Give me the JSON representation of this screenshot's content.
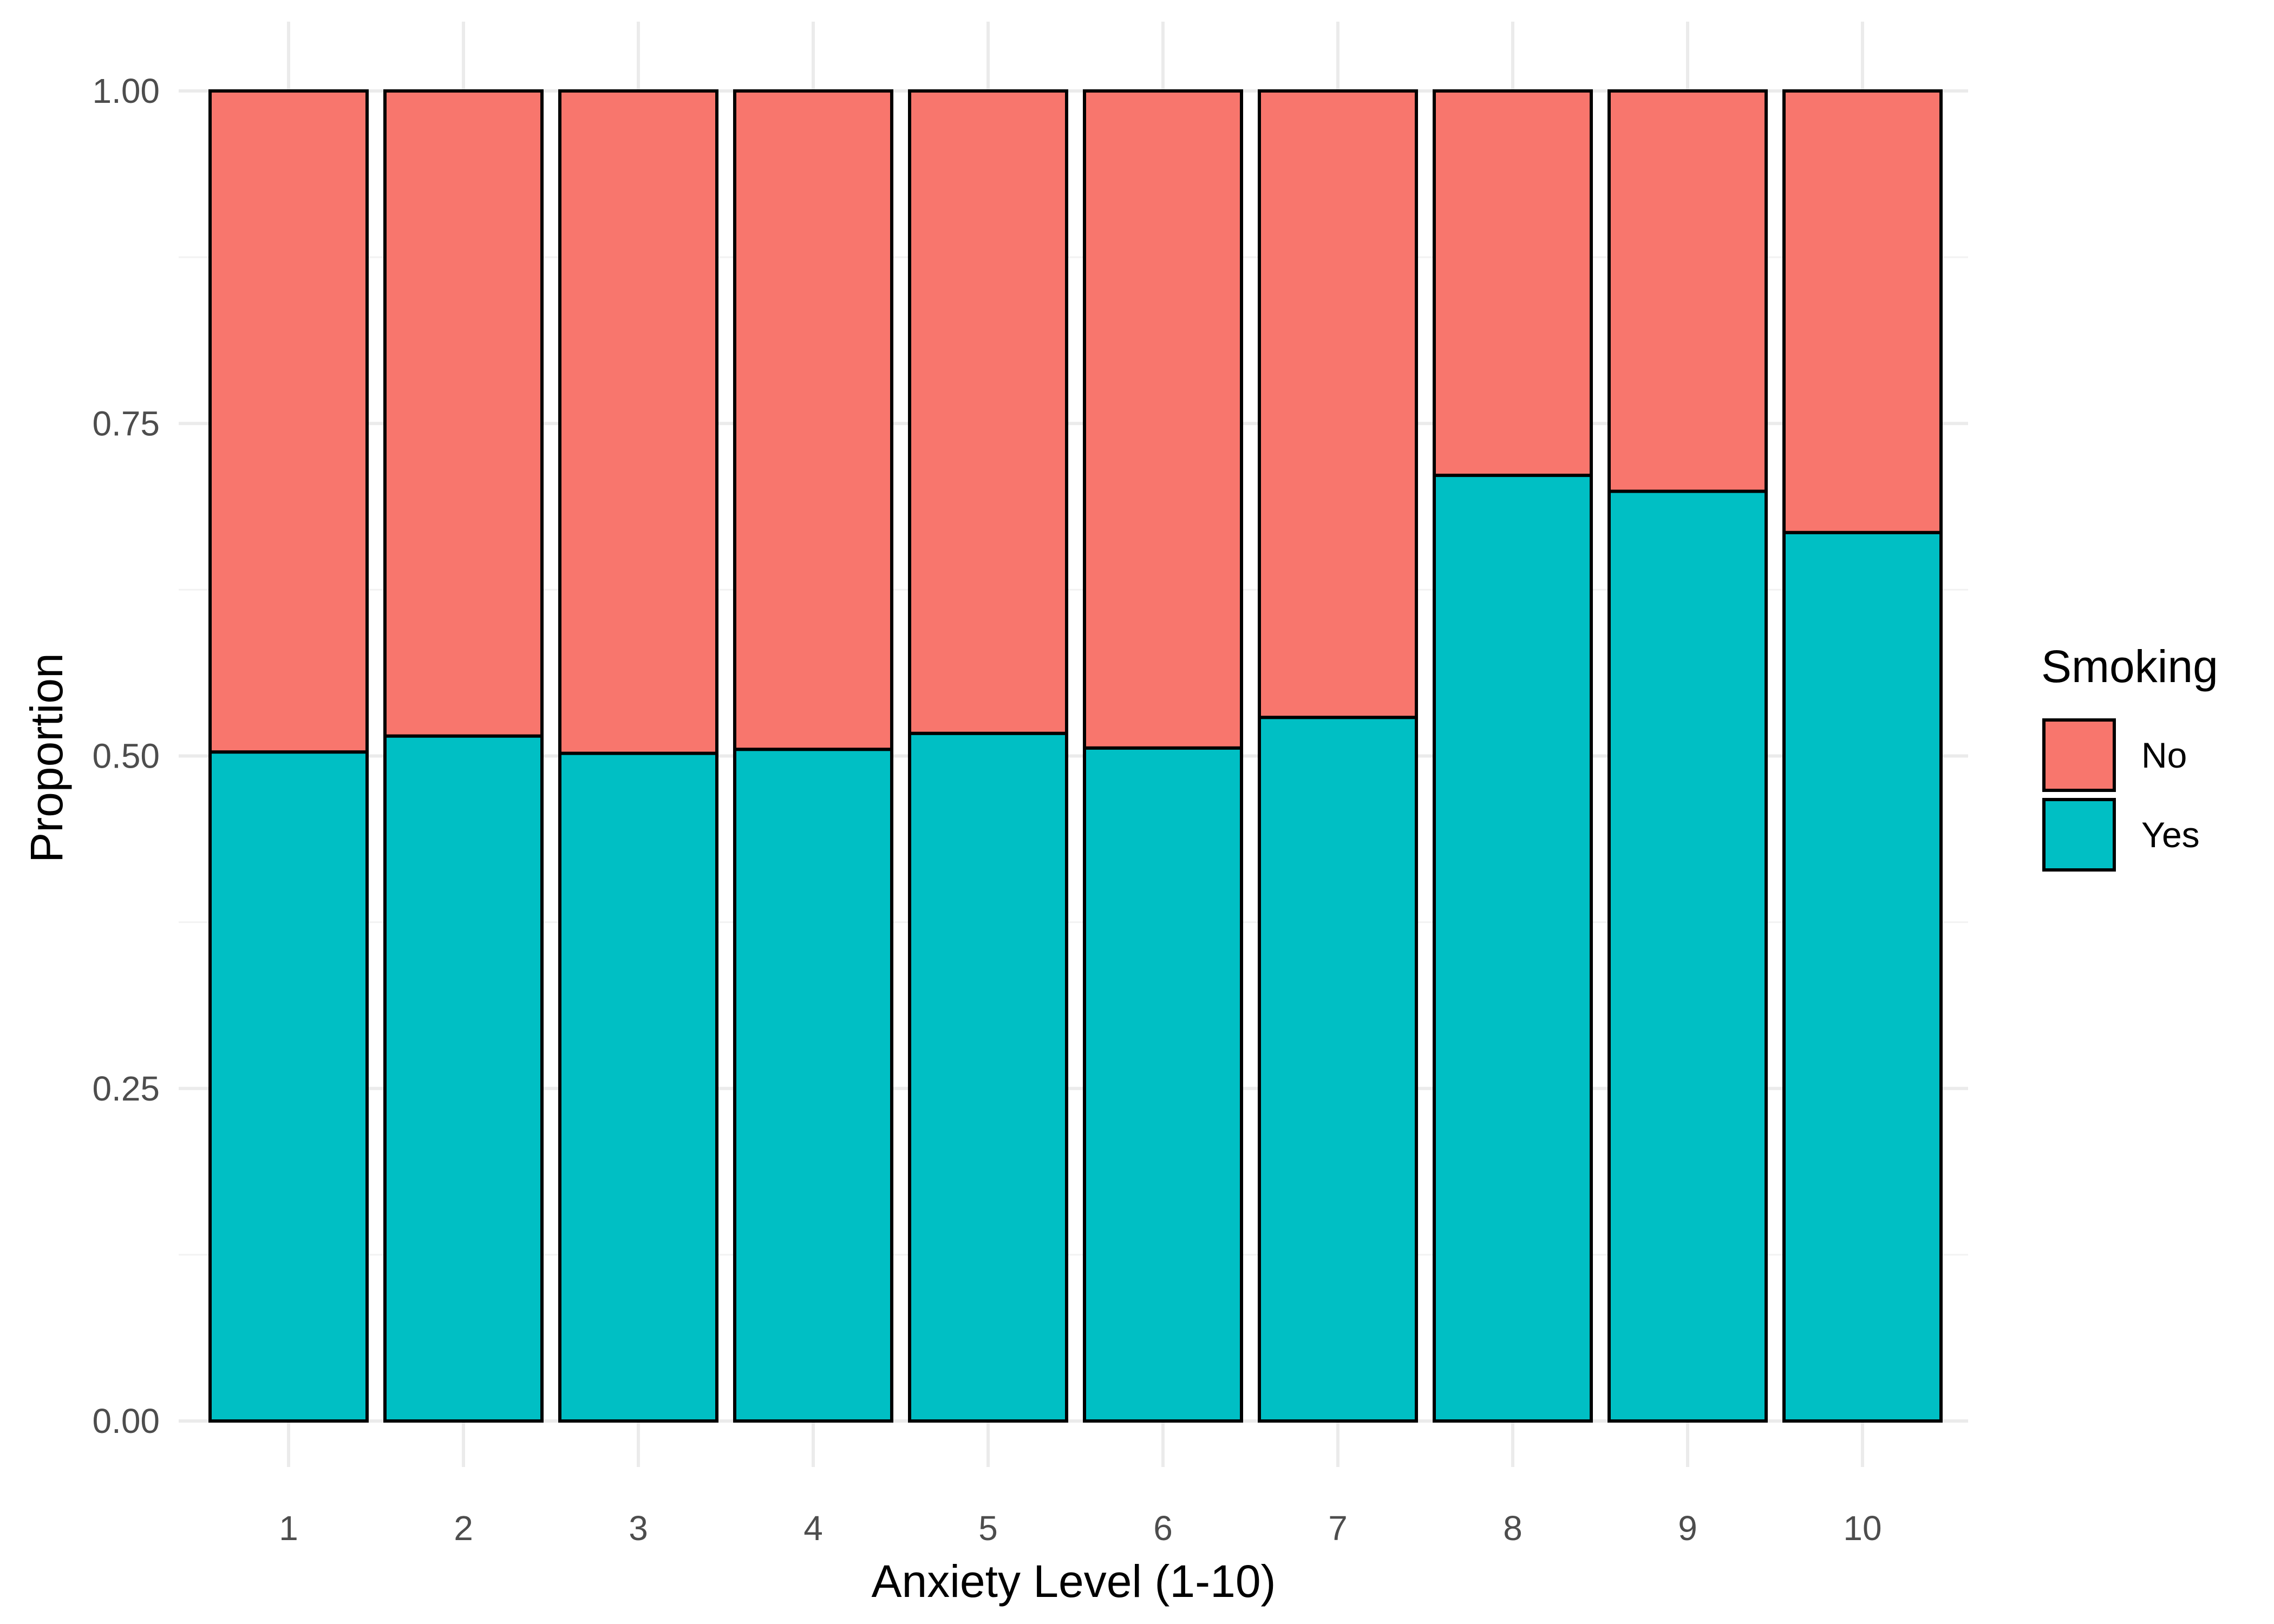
{
  "chart_data": {
    "type": "bar",
    "stacked": true,
    "title": "",
    "xlabel": "Anxiety Level (1-10)",
    "ylabel": "Proportion",
    "categories": [
      "1",
      "2",
      "3",
      "4",
      "5",
      "6",
      "7",
      "8",
      "9",
      "10"
    ],
    "series": [
      {
        "name": "Yes",
        "color": "#00BFC4",
        "values": [
          0.503,
          0.515,
          0.502,
          0.505,
          0.517,
          0.506,
          0.529,
          0.711,
          0.699,
          0.668
        ]
      },
      {
        "name": "No",
        "color": "#F8766D",
        "values": [
          0.497,
          0.485,
          0.498,
          0.495,
          0.483,
          0.494,
          0.471,
          0.289,
          0.301,
          0.332
        ]
      }
    ],
    "ylim": [
      0,
      1
    ],
    "yticks": [
      0,
      0.25,
      0.5,
      0.75,
      1
    ],
    "ytick_labels": [
      "0.00",
      "0.25",
      "0.50",
      "0.75",
      "1.00"
    ],
    "grid": true,
    "legend": {
      "title": "Smoking",
      "placement": "right",
      "entries": [
        {
          "label": "No",
          "color": "#F8766D"
        },
        {
          "label": "Yes",
          "color": "#00BFC4"
        }
      ]
    }
  }
}
